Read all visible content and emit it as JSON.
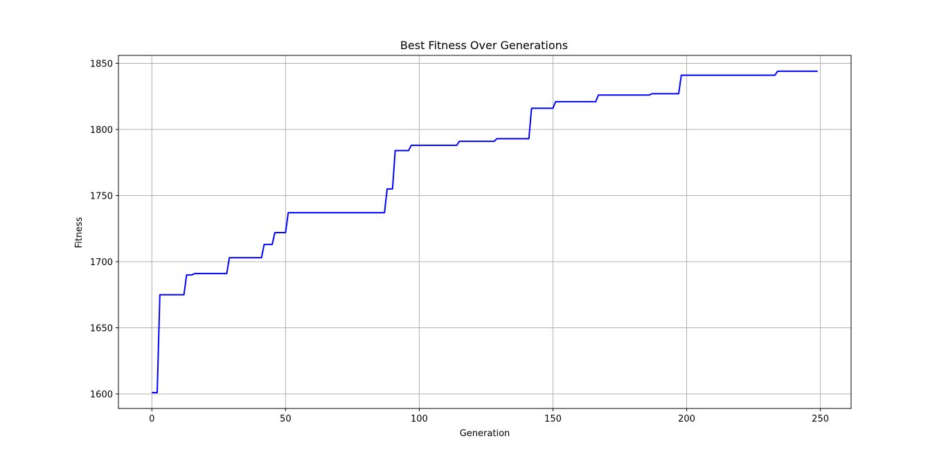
{
  "chart_data": {
    "type": "line",
    "title": "Best Fitness Over Generations",
    "xlabel": "Generation",
    "ylabel": "Fitness",
    "xlim": [
      -12.5,
      261.5
    ],
    "ylim": [
      1589,
      1856
    ],
    "xticks": [
      0,
      50,
      100,
      150,
      200,
      250
    ],
    "yticks": [
      1600,
      1650,
      1700,
      1750,
      1800,
      1850
    ],
    "grid": true,
    "line_color": "#0000ff",
    "grid_color": "#b0b0b0",
    "series": [
      {
        "name": "",
        "points": [
          [
            0,
            1601
          ],
          [
            2,
            1601
          ],
          [
            3,
            1675
          ],
          [
            12,
            1675
          ],
          [
            13,
            1690
          ],
          [
            15,
            1690
          ],
          [
            16,
            1691
          ],
          [
            28,
            1691
          ],
          [
            29,
            1703
          ],
          [
            41,
            1703
          ],
          [
            42,
            1713
          ],
          [
            45,
            1713
          ],
          [
            46,
            1722
          ],
          [
            50,
            1722
          ],
          [
            51,
            1737
          ],
          [
            87,
            1737
          ],
          [
            88,
            1755
          ],
          [
            90,
            1755
          ],
          [
            91,
            1784
          ],
          [
            96,
            1784
          ],
          [
            97,
            1788
          ],
          [
            114,
            1788
          ],
          [
            115,
            1791
          ],
          [
            128,
            1791
          ],
          [
            129,
            1793
          ],
          [
            141,
            1793
          ],
          [
            142,
            1816
          ],
          [
            150,
            1816
          ],
          [
            151,
            1821
          ],
          [
            166,
            1821
          ],
          [
            167,
            1826
          ],
          [
            186,
            1826
          ],
          [
            187,
            1827
          ],
          [
            197,
            1827
          ],
          [
            198,
            1841
          ],
          [
            233,
            1841
          ],
          [
            234,
            1844
          ],
          [
            249,
            1844
          ]
        ]
      }
    ]
  }
}
